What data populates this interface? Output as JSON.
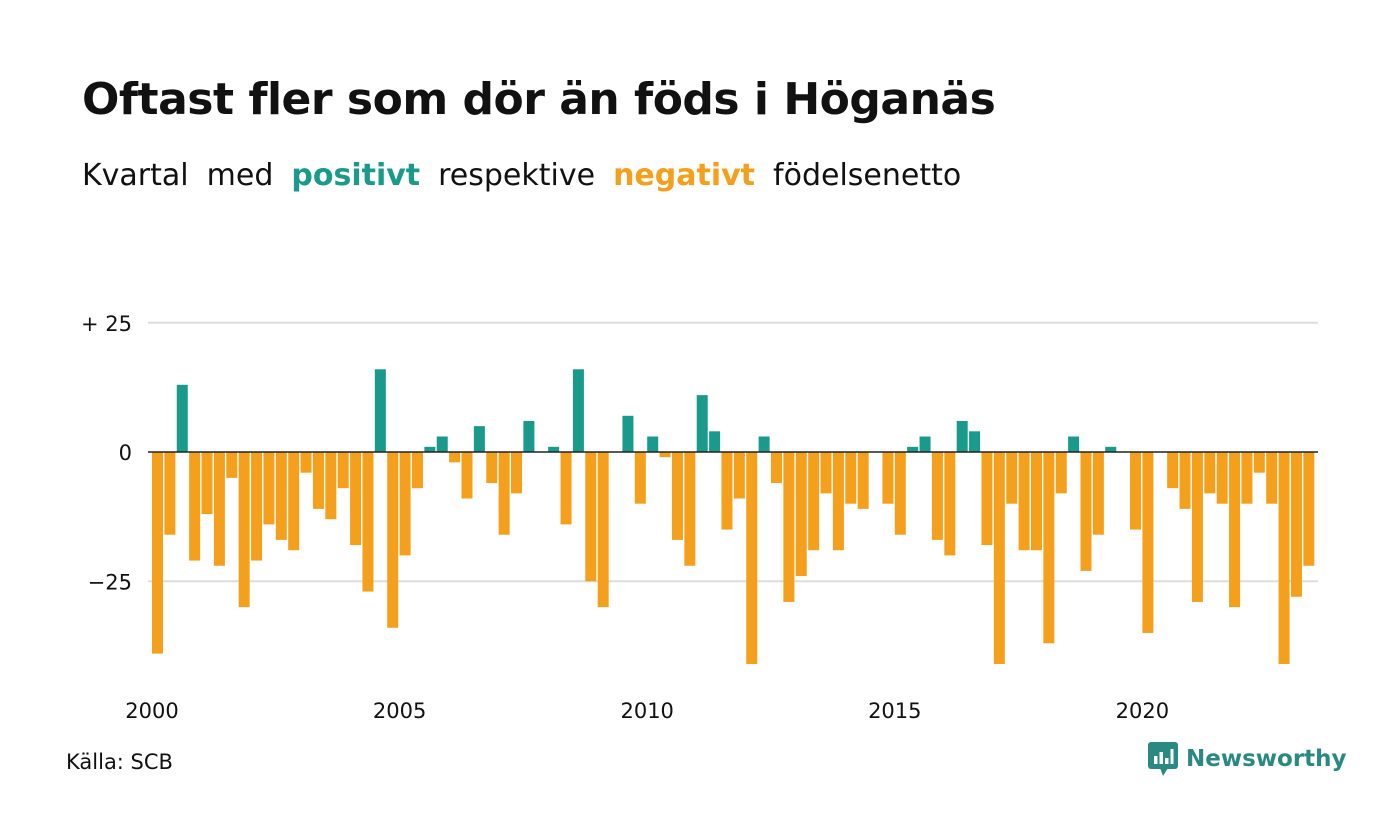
{
  "title": "Oftast fler som dör än föds i Höganäs",
  "subtitle": {
    "parts": [
      "Kvartal",
      "med",
      "positivt",
      "respektive",
      "negativt",
      "födelsenetto"
    ]
  },
  "source": "Källa: SCB",
  "brand": {
    "name": "Newsworthy",
    "icon": "newsworthy-logo-icon"
  },
  "colors": {
    "positive": "#1a9a8a",
    "negative": "#f5a01c",
    "grid": "#dddddd",
    "baseline": "#222222"
  },
  "chart_data": {
    "type": "bar",
    "title": "Oftast fler som dör än föds i Höganäs",
    "subtitle": "Kvartal med positivt respektive negativt födelsenetto",
    "xlabel": "",
    "ylabel": "",
    "ylim": [
      -41,
      26
    ],
    "yticks": [
      {
        "value": 25,
        "label": "+ 25"
      },
      {
        "value": 0,
        "label": "0"
      },
      {
        "value": -25,
        "label": "−25"
      }
    ],
    "xticks": [
      {
        "label": "2000",
        "index": 0
      },
      {
        "label": "2005",
        "index": 20
      },
      {
        "label": "2010",
        "index": 40
      },
      {
        "label": "2015",
        "index": 60
      },
      {
        "label": "2020",
        "index": 80
      }
    ],
    "start": "2000-Q1",
    "frequency": "quarterly",
    "values": [
      -39,
      -16,
      13,
      -21,
      -12,
      -22,
      -5,
      -30,
      -21,
      -14,
      -17,
      -19,
      -4,
      -11,
      -13,
      -7,
      -18,
      -27,
      16,
      -34,
      -20,
      -7,
      1,
      3,
      -2,
      -9,
      5,
      -6,
      -16,
      -8,
      6,
      0,
      1,
      -14,
      16,
      -25,
      -30,
      0,
      7,
      -10,
      3,
      -1,
      -17,
      -22,
      11,
      4,
      -15,
      -9,
      -41,
      3,
      -6,
      -29,
      -24,
      -19,
      -8,
      -19,
      -10,
      -11,
      0,
      -10,
      -16,
      1,
      3,
      -17,
      -20,
      6,
      4,
      -18,
      -41,
      -10,
      -19,
      -19,
      -37,
      -8,
      3,
      -23,
      -16,
      1,
      0,
      -15,
      -35,
      0,
      -7,
      -11,
      -29,
      -8,
      -10,
      -30,
      -10,
      -4,
      -10,
      -41,
      -28,
      -22
    ]
  }
}
